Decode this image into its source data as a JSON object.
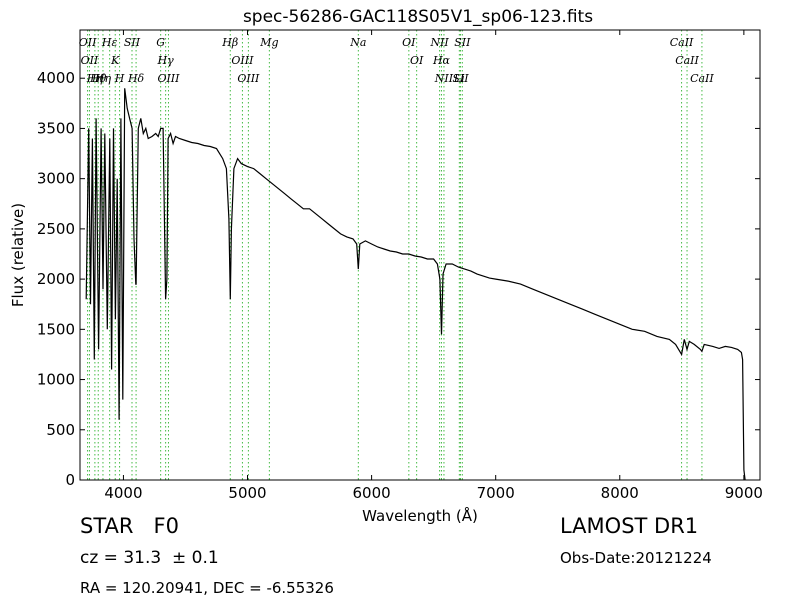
{
  "chart_data": {
    "type": "line",
    "title": "spec-56286-GAC118S05V1_sp06-123.fits",
    "xlabel": "Wavelength (Å)",
    "ylabel": "Flux (relative)",
    "xlim": [
      3650,
      9130
    ],
    "ylim": [
      0,
      4480
    ],
    "xticks": [
      4000,
      5000,
      6000,
      7000,
      8000,
      9000
    ],
    "yticks": [
      0,
      500,
      1000,
      1500,
      2000,
      2500,
      3000,
      3500,
      4000
    ],
    "grid": false,
    "series": [
      {
        "x": [
          3700,
          3720,
          3735,
          3750,
          3765,
          3780,
          3800,
          3820,
          3835,
          3850,
          3870,
          3890,
          3905,
          3920,
          3935,
          3950,
          3965,
          3980,
          3995,
          4010,
          4030,
          4050,
          4070,
          4085,
          4100,
          4102,
          4120,
          4140,
          4160,
          4180,
          4200,
          4230,
          4260,
          4280,
          4300,
          4320,
          4340,
          4350,
          4360,
          4380,
          4400,
          4420,
          4450,
          4500,
          4550,
          4600,
          4650,
          4700,
          4750,
          4800,
          4830,
          4850,
          4861,
          4870,
          4890,
          4920,
          4950,
          5000,
          5050,
          5100,
          5150,
          5200,
          5250,
          5300,
          5350,
          5400,
          5450,
          5500,
          5550,
          5600,
          5650,
          5700,
          5750,
          5800,
          5850,
          5880,
          5893,
          5905,
          5950,
          6000,
          6050,
          6100,
          6150,
          6200,
          6250,
          6300,
          6350,
          6400,
          6450,
          6500,
          6530,
          6550,
          6563,
          6575,
          6600,
          6650,
          6700,
          6750,
          6800,
          6850,
          6900,
          6950,
          7000,
          7100,
          7200,
          7300,
          7400,
          7500,
          7600,
          7700,
          7800,
          7900,
          8000,
          8100,
          8200,
          8300,
          8400,
          8450,
          8498,
          8520,
          8542,
          8560,
          8600,
          8650,
          8662,
          8680,
          8750,
          8800,
          8850,
          8900,
          8950,
          8980,
          8990,
          9000,
          9010
        ],
        "values": [
          1800,
          3500,
          1750,
          3400,
          1200,
          3600,
          1300,
          3500,
          1900,
          3450,
          1500,
          3400,
          1100,
          3500,
          1600,
          3000,
          600,
          3600,
          800,
          3900,
          3700,
          3600,
          3500,
          2400,
          1950,
          1950,
          3500,
          3600,
          3450,
          3500,
          3400,
          3420,
          3450,
          3420,
          3500,
          3500,
          1800,
          2000,
          3400,
          3450,
          3350,
          3420,
          3400,
          3380,
          3360,
          3350,
          3330,
          3320,
          3300,
          3200,
          3100,
          2600,
          1800,
          2500,
          3100,
          3200,
          3150,
          3120,
          3100,
          3050,
          3000,
          2950,
          2900,
          2850,
          2800,
          2750,
          2700,
          2700,
          2650,
          2600,
          2550,
          2500,
          2450,
          2420,
          2400,
          2350,
          2100,
          2350,
          2380,
          2350,
          2320,
          2300,
          2280,
          2270,
          2250,
          2250,
          2230,
          2220,
          2200,
          2200,
          2150,
          2000,
          1450,
          2050,
          2150,
          2150,
          2120,
          2100,
          2080,
          2050,
          2030,
          2010,
          2000,
          1980,
          1950,
          1900,
          1850,
          1800,
          1750,
          1700,
          1650,
          1600,
          1550,
          1500,
          1480,
          1430,
          1400,
          1350,
          1250,
          1400,
          1300,
          1380,
          1350,
          1300,
          1280,
          1350,
          1330,
          1310,
          1330,
          1320,
          1300,
          1270,
          1200,
          100,
          0
        ]
      }
    ],
    "lines": [
      {
        "x": 3711,
        "labels": [
          "OII"
        ]
      },
      {
        "x": 3726,
        "labels": [
          "OII"
        ]
      },
      {
        "x": 3770,
        "labels": [
          "Hη"
        ]
      },
      {
        "x": 3797,
        "labels": [
          "Hθ"
        ]
      },
      {
        "x": 3835,
        "labels": [
          "Hη"
        ]
      },
      {
        "x": 3889,
        "labels": [
          "Hε"
        ]
      },
      {
        "x": 3934,
        "labels": [
          "K"
        ]
      },
      {
        "x": 3969,
        "labels": [
          "H"
        ]
      },
      {
        "x": 4069,
        "labels": [
          "SII"
        ]
      },
      {
        "x": 4102,
        "labels": [
          "Hδ"
        ]
      },
      {
        "x": 4300,
        "labels": [
          "G"
        ]
      },
      {
        "x": 4340,
        "labels": [
          "Hγ"
        ]
      },
      {
        "x": 4363,
        "labels": [
          "OIII"
        ]
      },
      {
        "x": 4861,
        "labels": [
          "Hβ"
        ]
      },
      {
        "x": 4959,
        "labels": [
          "OIII"
        ]
      },
      {
        "x": 5007,
        "labels": [
          "OIII"
        ]
      },
      {
        "x": 5176,
        "labels": [
          "Mg"
        ]
      },
      {
        "x": 5893,
        "labels": [
          "Na"
        ]
      },
      {
        "x": 6300,
        "labels": [
          "OI"
        ]
      },
      {
        "x": 6363,
        "labels": [
          "OI"
        ]
      },
      {
        "x": 6548,
        "labels": [
          "NII"
        ]
      },
      {
        "x": 6563,
        "labels": [
          "Hα"
        ]
      },
      {
        "x": 6583,
        "labels": [
          "NII"
        ]
      },
      {
        "x": 6707,
        "labels": [
          "Li"
        ]
      },
      {
        "x": 6716,
        "labels": [
          "SII"
        ]
      },
      {
        "x": 6731,
        "labels": [
          "SII"
        ]
      },
      {
        "x": 8498,
        "labels": [
          "CaII"
        ]
      },
      {
        "x": 8542,
        "labels": [
          "CaII"
        ]
      },
      {
        "x": 8662,
        "labels": [
          "CaII"
        ]
      }
    ]
  },
  "info": {
    "class": "STAR   F0",
    "redshift": "cz = 31.3  ± 0.1",
    "coords": "RA = 120.20941, DEC = -6.55326",
    "survey": "LAMOST DR1",
    "obs_date": "Obs-Date:20121224"
  }
}
